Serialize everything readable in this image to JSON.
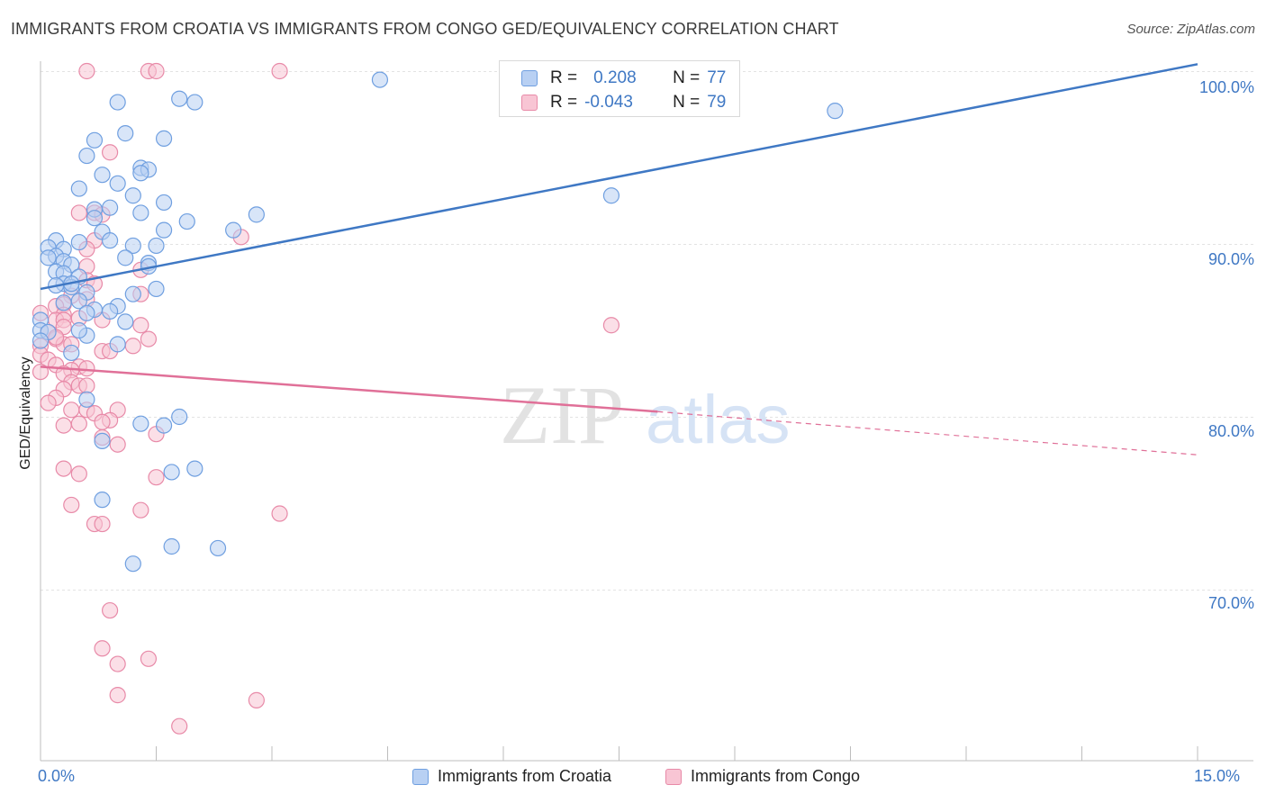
{
  "title": "IMMIGRANTS FROM CROATIA VS IMMIGRANTS FROM CONGO GED/EQUIVALENCY CORRELATION CHART",
  "source": "Source: ZipAtlas.com",
  "watermark": {
    "zip": "ZIP",
    "atlas": "atlas"
  },
  "legend_top": {
    "croatia": {
      "r_label": "R =",
      "r_value": "0.208",
      "n_label": "N =",
      "n_value": "77"
    },
    "congo": {
      "r_label": "R =",
      "r_value": "-0.043",
      "n_label": "N =",
      "n_value": "79"
    }
  },
  "colors": {
    "croatia_fill": "#b8d0f3",
    "croatia_stroke": "#6f9fe0",
    "croatia_line": "#3f78c4",
    "congo_fill": "#f8c5d4",
    "congo_stroke": "#e88aa8",
    "congo_line": "#e07098",
    "axis_text": "#3f78c4",
    "grid": "#e3e3e3"
  },
  "chart_data": {
    "type": "scatter",
    "title": "IMMIGRANTS FROM CROATIA VS IMMIGRANTS FROM CONGO GED/EQUIVALENCY CORRELATION CHART",
    "xlabel": "",
    "ylabel": "GED/Equivalency",
    "xlim": [
      0,
      15
    ],
    "ylim": [
      60.5,
      101.5
    ],
    "x_tick_labels": [
      "0.0%",
      "15.0%"
    ],
    "y_ticks": [
      70,
      80,
      90,
      100
    ],
    "y_tick_labels": [
      "70.0%",
      "80.0%",
      "90.0%",
      "100.0%"
    ],
    "grid": true,
    "legend_position": "top-center and bottom",
    "series": [
      {
        "name": "Immigrants from Croatia",
        "r": 0.208,
        "n": 77,
        "trend": {
          "x0": 0,
          "y0": 87.4,
          "x1": 15,
          "y1": 100.4
        },
        "points": [
          [
            4.4,
            99.5
          ],
          [
            1.0,
            98.2
          ],
          [
            1.8,
            98.4
          ],
          [
            2.0,
            98.2
          ],
          [
            10.3,
            97.7
          ],
          [
            1.1,
            96.4
          ],
          [
            1.6,
            96.1
          ],
          [
            0.7,
            96.0
          ],
          [
            0.6,
            95.1
          ],
          [
            1.3,
            94.4
          ],
          [
            1.4,
            94.3
          ],
          [
            1.3,
            94.1
          ],
          [
            0.8,
            94.0
          ],
          [
            1.0,
            93.5
          ],
          [
            0.5,
            93.2
          ],
          [
            1.2,
            92.8
          ],
          [
            7.4,
            92.8
          ],
          [
            1.6,
            92.4
          ],
          [
            0.9,
            92.1
          ],
          [
            0.7,
            92.0
          ],
          [
            1.3,
            91.8
          ],
          [
            2.8,
            91.7
          ],
          [
            0.7,
            91.5
          ],
          [
            1.9,
            91.3
          ],
          [
            2.5,
            90.8
          ],
          [
            1.6,
            90.8
          ],
          [
            0.8,
            90.7
          ],
          [
            0.9,
            90.2
          ],
          [
            0.2,
            90.2
          ],
          [
            0.5,
            90.1
          ],
          [
            1.2,
            89.9
          ],
          [
            1.5,
            89.9
          ],
          [
            0.1,
            89.8
          ],
          [
            0.3,
            89.7
          ],
          [
            0.2,
            89.3
          ],
          [
            0.1,
            89.2
          ],
          [
            0.3,
            89.0
          ],
          [
            1.1,
            89.2
          ],
          [
            1.4,
            88.9
          ],
          [
            0.4,
            88.8
          ],
          [
            1.4,
            88.7
          ],
          [
            0.2,
            88.4
          ],
          [
            0.3,
            88.3
          ],
          [
            0.5,
            88.1
          ],
          [
            0.3,
            87.7
          ],
          [
            0.4,
            87.5
          ],
          [
            0.4,
            87.7
          ],
          [
            1.5,
            87.4
          ],
          [
            0.6,
            87.2
          ],
          [
            1.2,
            87.1
          ],
          [
            0.5,
            86.7
          ],
          [
            0.7,
            86.2
          ],
          [
            0.6,
            86.0
          ],
          [
            1.0,
            86.4
          ],
          [
            0.0,
            85.6
          ],
          [
            1.1,
            85.5
          ],
          [
            0.0,
            85.0
          ],
          [
            0.1,
            84.9
          ],
          [
            0.6,
            84.7
          ],
          [
            0.0,
            84.4
          ],
          [
            1.0,
            84.2
          ],
          [
            0.4,
            83.7
          ],
          [
            0.6,
            81.0
          ],
          [
            1.8,
            80.0
          ],
          [
            1.3,
            79.6
          ],
          [
            1.6,
            79.5
          ],
          [
            0.8,
            78.6
          ],
          [
            2.0,
            77.0
          ],
          [
            1.7,
            76.8
          ],
          [
            0.8,
            75.2
          ],
          [
            1.7,
            72.5
          ],
          [
            2.3,
            72.4
          ],
          [
            1.2,
            71.5
          ],
          [
            0.5,
            85.0
          ],
          [
            0.9,
            86.1
          ],
          [
            0.2,
            87.6
          ],
          [
            0.3,
            86.6
          ]
        ]
      },
      {
        "name": "Immigrants from Congo",
        "r": -0.043,
        "n": 79,
        "trend": {
          "x0": 0,
          "y0": 82.9,
          "x1": 8.0,
          "y1": 80.3
        },
        "trend_dashed": {
          "x0": 8.0,
          "y0": 80.3,
          "x1": 15,
          "y1": 77.8
        },
        "points": [
          [
            0.6,
            100.0
          ],
          [
            1.4,
            100.0
          ],
          [
            1.5,
            100.0
          ],
          [
            3.1,
            100.0
          ],
          [
            0.9,
            95.3
          ],
          [
            0.5,
            91.8
          ],
          [
            0.7,
            91.8
          ],
          [
            0.8,
            91.7
          ],
          [
            2.6,
            90.4
          ],
          [
            0.7,
            90.2
          ],
          [
            0.6,
            89.7
          ],
          [
            1.3,
            88.5
          ],
          [
            0.6,
            88.7
          ],
          [
            0.6,
            87.9
          ],
          [
            0.7,
            87.7
          ],
          [
            1.3,
            87.1
          ],
          [
            0.4,
            87.0
          ],
          [
            0.6,
            86.8
          ],
          [
            0.3,
            86.5
          ],
          [
            0.2,
            86.4
          ],
          [
            0.0,
            86.0
          ],
          [
            0.3,
            85.9
          ],
          [
            0.2,
            85.6
          ],
          [
            0.3,
            85.6
          ],
          [
            0.5,
            85.7
          ],
          [
            0.8,
            85.6
          ],
          [
            1.3,
            85.3
          ],
          [
            7.4,
            85.3
          ],
          [
            0.3,
            85.2
          ],
          [
            0.1,
            84.9
          ],
          [
            0.2,
            84.5
          ],
          [
            1.4,
            84.5
          ],
          [
            0.3,
            84.2
          ],
          [
            0.4,
            84.2
          ],
          [
            0.0,
            84.1
          ],
          [
            1.2,
            84.1
          ],
          [
            0.8,
            83.8
          ],
          [
            0.9,
            83.8
          ],
          [
            0.0,
            83.6
          ],
          [
            0.1,
            83.3
          ],
          [
            0.2,
            83.0
          ],
          [
            0.5,
            82.9
          ],
          [
            0.6,
            82.8
          ],
          [
            0.4,
            82.7
          ],
          [
            0.0,
            82.6
          ],
          [
            0.3,
            82.5
          ],
          [
            0.4,
            82.0
          ],
          [
            0.5,
            81.8
          ],
          [
            0.6,
            81.8
          ],
          [
            0.3,
            81.6
          ],
          [
            0.2,
            81.1
          ],
          [
            0.1,
            80.8
          ],
          [
            0.4,
            80.4
          ],
          [
            0.6,
            80.4
          ],
          [
            1.0,
            80.4
          ],
          [
            0.7,
            80.2
          ],
          [
            0.9,
            79.8
          ],
          [
            0.8,
            79.7
          ],
          [
            0.5,
            79.6
          ],
          [
            0.3,
            79.5
          ],
          [
            1.5,
            79.0
          ],
          [
            0.8,
            78.8
          ],
          [
            1.0,
            78.4
          ],
          [
            0.3,
            77.0
          ],
          [
            0.5,
            76.7
          ],
          [
            1.5,
            76.5
          ],
          [
            0.4,
            74.9
          ],
          [
            1.3,
            74.6
          ],
          [
            3.1,
            74.4
          ],
          [
            0.7,
            73.8
          ],
          [
            0.8,
            73.8
          ],
          [
            0.9,
            68.8
          ],
          [
            0.8,
            66.6
          ],
          [
            1.4,
            66.0
          ],
          [
            1.0,
            65.7
          ],
          [
            1.0,
            63.9
          ],
          [
            2.8,
            63.6
          ],
          [
            1.8,
            62.1
          ],
          [
            0.2,
            84.6
          ]
        ]
      }
    ]
  }
}
